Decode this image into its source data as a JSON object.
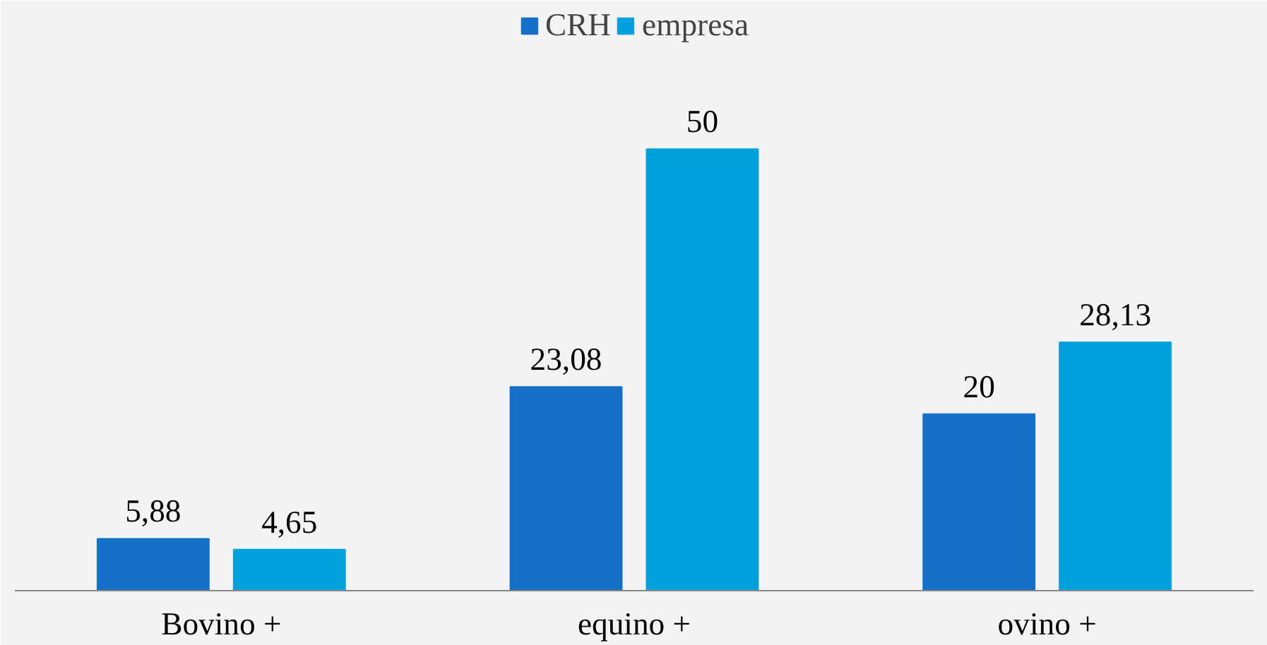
{
  "chart_data": {
    "type": "bar",
    "categories": [
      "Bovino +",
      "equino +",
      "ovino +"
    ],
    "series": [
      {
        "name": "CRH",
        "color": "#1570c8",
        "values": [
          5.88,
          23.08,
          20
        ],
        "value_labels": [
          "5,88",
          "23,08",
          "20"
        ]
      },
      {
        "name": "empresa",
        "color": "#00a0dc",
        "values": [
          4.65,
          50,
          28.13
        ],
        "value_labels": [
          "4,65",
          "50",
          "28,13"
        ]
      }
    ],
    "legend": "top"
  }
}
